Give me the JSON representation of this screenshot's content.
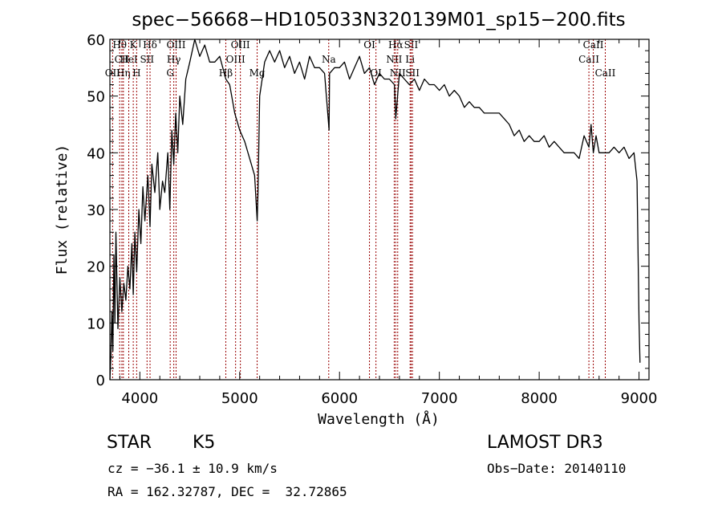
{
  "chart_data": {
    "type": "line",
    "title": "spec−56668−HD105033N320139M01_sp15−200.fits",
    "xlabel": "Wavelength (Å)",
    "ylabel": "Flux (relative)",
    "xlim": [
      3700,
      9100
    ],
    "ylim": [
      0,
      60
    ],
    "x_ticks": [
      4000,
      5000,
      6000,
      7000,
      8000,
      9000
    ],
    "y_ticks": [
      0,
      10,
      20,
      30,
      40,
      50,
      60
    ],
    "grid": false,
    "line_color": "#990000",
    "spectrum": {
      "name": "flux",
      "x": [
        3700,
        3710,
        3720,
        3730,
        3740,
        3750,
        3760,
        3780,
        3800,
        3820,
        3840,
        3860,
        3880,
        3900,
        3920,
        3934,
        3950,
        3968,
        3990,
        4010,
        4030,
        4050,
        4080,
        4102,
        4120,
        4150,
        4180,
        4200,
        4227,
        4250,
        4280,
        4300,
        4320,
        4340,
        4360,
        4380,
        4400,
        4430,
        4460,
        4500,
        4550,
        4600,
        4650,
        4700,
        4750,
        4800,
        4861,
        4900,
        4950,
        5000,
        5050,
        5100,
        5150,
        5175,
        5183,
        5200,
        5250,
        5300,
        5350,
        5400,
        5450,
        5500,
        5550,
        5600,
        5650,
        5700,
        5750,
        5800,
        5850,
        5895,
        5900,
        5950,
        6000,
        6050,
        6100,
        6150,
        6200,
        6250,
        6300,
        6350,
        6400,
        6450,
        6500,
        6550,
        6563,
        6600,
        6650,
        6700,
        6750,
        6800,
        6850,
        6900,
        6950,
        7000,
        7050,
        7100,
        7150,
        7200,
        7250,
        7300,
        7350,
        7400,
        7450,
        7500,
        7550,
        7600,
        7650,
        7700,
        7750,
        7800,
        7850,
        7900,
        7950,
        8000,
        8050,
        8100,
        8150,
        8200,
        8250,
        8300,
        8350,
        8400,
        8450,
        8498,
        8520,
        8542,
        8570,
        8600,
        8662,
        8700,
        8750,
        8800,
        8850,
        8900,
        8950,
        8980,
        9000,
        9010
      ],
      "y": [
        0,
        4,
        12,
        5,
        22,
        10,
        26,
        9,
        18,
        12,
        17,
        14,
        20,
        16,
        24,
        15,
        26,
        19,
        30,
        24,
        34,
        28,
        36,
        27,
        38,
        33,
        40,
        30,
        35,
        33,
        40,
        30,
        44,
        38,
        47,
        40,
        50,
        45,
        53,
        56,
        60,
        57,
        59,
        56,
        56,
        57,
        53,
        52,
        47,
        44,
        42,
        39,
        36,
        28,
        33,
        50,
        56,
        58,
        56,
        58,
        55,
        57,
        54,
        56,
        53,
        57,
        55,
        55,
        54,
        44,
        54,
        55,
        55,
        56,
        53,
        55,
        57,
        54,
        55,
        52,
        54,
        53,
        53,
        52,
        46,
        54,
        53,
        52,
        53,
        51,
        53,
        52,
        52,
        51,
        52,
        50,
        51,
        50,
        48,
        49,
        48,
        48,
        47,
        47,
        47,
        47,
        46,
        45,
        43,
        44,
        42,
        43,
        42,
        42,
        43,
        41,
        42,
        41,
        40,
        40,
        40,
        39,
        43,
        41,
        45,
        40,
        43,
        40,
        40,
        40,
        41,
        40,
        41,
        39,
        40,
        35,
        10,
        3
      ]
    },
    "reference_lines": [
      {
        "wavelength": 3727,
        "label": "OII",
        "row": 2
      },
      {
        "wavelength": 3798,
        "label": "Hθ",
        "row": 0
      },
      {
        "wavelength": 3820,
        "label": "CII",
        "row": 1
      },
      {
        "wavelength": 3835,
        "label": "Hη",
        "row": 2
      },
      {
        "wavelength": 3889,
        "label": "HeI",
        "row": 1
      },
      {
        "wavelength": 3934,
        "label": "K",
        "row": 0
      },
      {
        "wavelength": 3968,
        "label": "H",
        "row": 2
      },
      {
        "wavelength": 4072,
        "label": "SII",
        "row": 1
      },
      {
        "wavelength": 4102,
        "label": "Hδ",
        "row": 0
      },
      {
        "wavelength": 4304,
        "label": "G",
        "row": 2
      },
      {
        "wavelength": 4340,
        "label": "Hγ",
        "row": 1
      },
      {
        "wavelength": 4363,
        "label": "OIII",
        "row": 0
      },
      {
        "wavelength": 4861,
        "label": "Hβ",
        "row": 2
      },
      {
        "wavelength": 4959,
        "label": "OIII",
        "row": 1
      },
      {
        "wavelength": 5007,
        "label": "OIII",
        "row": 0
      },
      {
        "wavelength": 5175,
        "label": "Mg",
        "row": 2
      },
      {
        "wavelength": 5892,
        "label": "Na",
        "row": 1
      },
      {
        "wavelength": 6300,
        "label": "OI",
        "row": 0
      },
      {
        "wavelength": 6365,
        "label": "OI",
        "row": 2
      },
      {
        "wavelength": 6548,
        "label": "NII",
        "row": 1
      },
      {
        "wavelength": 6563,
        "label": "Hα",
        "row": 0
      },
      {
        "wavelength": 6583,
        "label": "NII",
        "row": 2
      },
      {
        "wavelength": 6707,
        "label": "Li",
        "row": 1
      },
      {
        "wavelength": 6717,
        "label": "SII",
        "row": 0
      },
      {
        "wavelength": 6731,
        "label": "SII",
        "row": 2
      },
      {
        "wavelength": 8498,
        "label": "CaII",
        "row": 1
      },
      {
        "wavelength": 8542,
        "label": "CaII",
        "row": 0
      },
      {
        "wavelength": 8662,
        "label": "CaII",
        "row": 2
      }
    ]
  },
  "info": {
    "class": "STAR",
    "subclass": "K5",
    "survey": "LAMOST DR3",
    "redshift": "cz = −36.1 ± 10.9 km/s",
    "obs_date": "Obs−Date: 20140110",
    "coords": "RA = 162.32787, DEC =  32.72865"
  }
}
